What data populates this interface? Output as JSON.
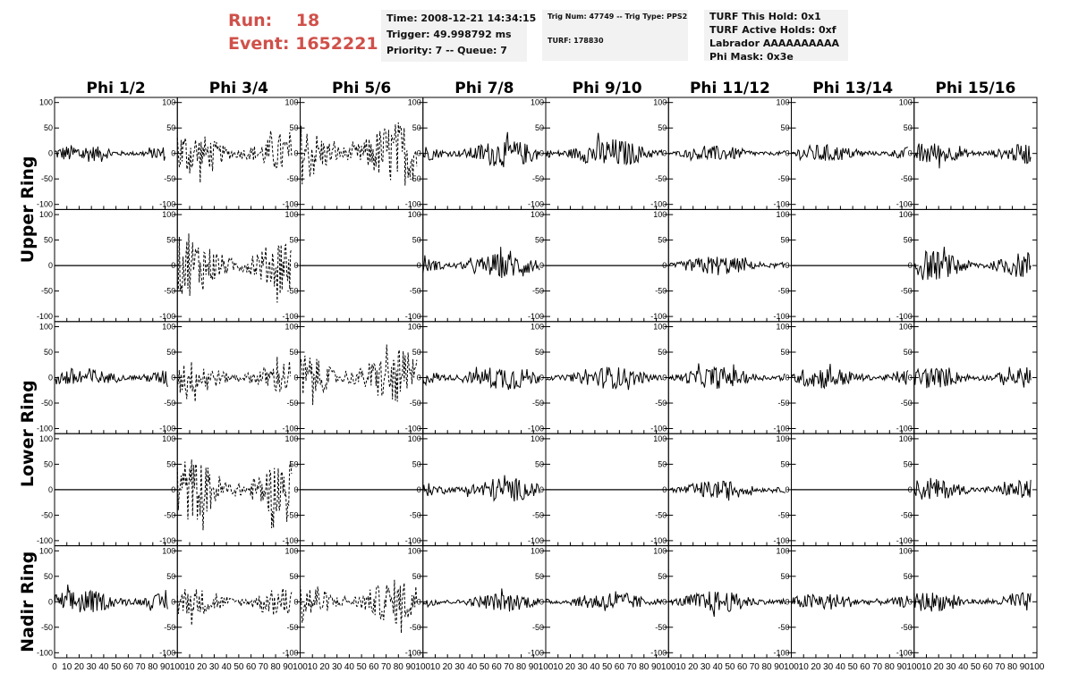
{
  "header": {
    "run_label": "Run:",
    "run_value": "18",
    "event_label": "Event:",
    "event_value": "1652221"
  },
  "info_time": {
    "time": "Time: 2008-12-21 14:34:15",
    "trigger": "Trigger: 49.998792 ms",
    "priority": "Priority: 7 -- Queue: 7"
  },
  "info_trig": {
    "trig": "Trig Num: 47749 -- Trig Type: PPS2",
    "turf": "TURF: 178830"
  },
  "info_turf": {
    "hold": "TURF This Hold: 0x1",
    "active": "TURF Active Holds: 0xf",
    "labrador": "Labrador AAAAAAAAAA",
    "phimask": "Phi Mask: 0x3e"
  },
  "chart_data": {
    "type": "line",
    "columns": [
      "Phi 1/2",
      "Phi 3/4",
      "Phi 5/6",
      "Phi 7/8",
      "Phi 9/10",
      "Phi 11/12",
      "Phi 13/14",
      "Phi 15/16"
    ],
    "ring_labels": [
      {
        "label": "Upper Ring",
        "rows": [
          0,
          1
        ]
      },
      {
        "label": "Lower Ring",
        "rows": [
          2,
          3
        ]
      },
      {
        "label": "Nadir Ring",
        "rows": [
          4,
          4
        ]
      }
    ],
    "ylim": [
      -110,
      110
    ],
    "yticks": [
      -100,
      -50,
      0,
      50,
      100
    ],
    "xlim": [
      0,
      100
    ],
    "xticks": [
      0,
      10,
      20,
      30,
      40,
      50,
      60,
      70,
      80,
      90,
      100
    ],
    "xtick_labels_col0": [
      "0",
      "10",
      "20",
      "30",
      "40",
      "50",
      "60",
      "70",
      "80",
      "90",
      "100"
    ],
    "xtick_labels_other": [
      "10",
      "20",
      "30",
      "40",
      "50",
      "60",
      "70",
      "80",
      "90",
      "100"
    ],
    "panels": [
      [
        {
          "style": "solid",
          "amp": 18,
          "xmin": 0,
          "xmax": 90
        },
        {
          "style": "dashed",
          "amp": 45,
          "xmin": 0,
          "xmax": 93
        },
        {
          "style": "dashed",
          "amp": 65,
          "xmin": 0,
          "xmax": 95
        },
        {
          "style": "solid",
          "amp": 28,
          "xmin": 0,
          "xmax": 95
        },
        {
          "style": "solid",
          "amp": 30,
          "xmin": 0,
          "xmax": 95
        },
        {
          "style": "solid",
          "amp": 15,
          "xmin": 0,
          "xmax": 95
        },
        {
          "style": "solid",
          "amp": 18,
          "xmin": 0,
          "xmax": 95
        },
        {
          "style": "solid",
          "amp": 22,
          "xmin": 0,
          "xmax": 95
        }
      ],
      [
        {
          "style": "flat"
        },
        {
          "style": "dashed",
          "amp": 60,
          "xmin": 0,
          "xmax": 93
        },
        {
          "style": "flat"
        },
        {
          "style": "solid",
          "amp": 25,
          "xmin": 0,
          "xmax": 95
        },
        {
          "style": "flat"
        },
        {
          "style": "solid",
          "amp": 20,
          "xmin": 0,
          "xmax": 95
        },
        {
          "style": "flat"
        },
        {
          "style": "solid",
          "amp": 30,
          "xmin": 0,
          "xmax": 95
        }
      ],
      [
        {
          "style": "solid",
          "amp": 20,
          "xmin": 0,
          "xmax": 92
        },
        {
          "style": "dashed",
          "amp": 35,
          "xmin": 0,
          "xmax": 92
        },
        {
          "style": "dashed",
          "amp": 55,
          "xmin": 0,
          "xmax": 95
        },
        {
          "style": "solid",
          "amp": 25,
          "xmin": 0,
          "xmax": 95
        },
        {
          "style": "solid",
          "amp": 22,
          "xmin": 0,
          "xmax": 95
        },
        {
          "style": "solid",
          "amp": 22,
          "xmin": 0,
          "xmax": 95
        },
        {
          "style": "solid",
          "amp": 22,
          "xmin": 0,
          "xmax": 95
        },
        {
          "style": "solid",
          "amp": 22,
          "xmin": 0,
          "xmax": 95
        }
      ],
      [
        {
          "style": "flat"
        },
        {
          "style": "dashed",
          "amp": 65,
          "xmin": 0,
          "xmax": 93
        },
        {
          "style": "flat"
        },
        {
          "style": "solid",
          "amp": 25,
          "xmin": 0,
          "xmax": 95
        },
        {
          "style": "flat"
        },
        {
          "style": "solid",
          "amp": 18,
          "xmin": 0,
          "xmax": 95
        },
        {
          "style": "flat"
        },
        {
          "style": "solid",
          "amp": 22,
          "xmin": 0,
          "xmax": 95
        }
      ],
      [
        {
          "style": "solid",
          "amp": 25,
          "xmin": 0,
          "xmax": 92
        },
        {
          "style": "dashed",
          "amp": 30,
          "xmin": 0,
          "xmax": 93
        },
        {
          "style": "dashed",
          "amp": 45,
          "xmin": 0,
          "xmax": 95
        },
        {
          "style": "solid",
          "amp": 18,
          "xmin": 0,
          "xmax": 95
        },
        {
          "style": "solid",
          "amp": 20,
          "xmin": 0,
          "xmax": 95
        },
        {
          "style": "solid",
          "amp": 22,
          "xmin": 0,
          "xmax": 95
        },
        {
          "style": "solid",
          "amp": 18,
          "xmin": 0,
          "xmax": 95
        },
        {
          "style": "solid",
          "amp": 20,
          "xmin": 0,
          "xmax": 95
        }
      ]
    ]
  }
}
